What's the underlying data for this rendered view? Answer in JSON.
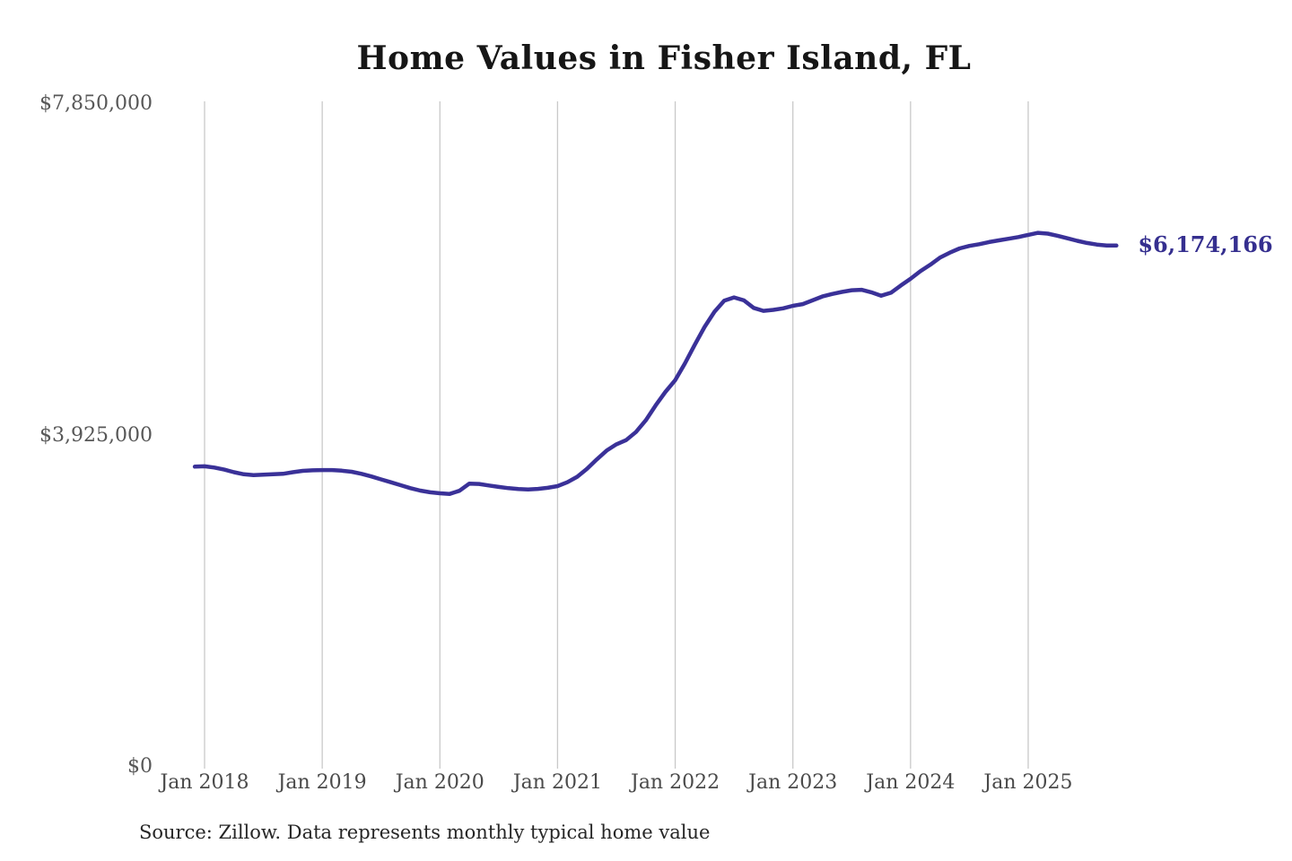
{
  "chart": {
    "title": "Home Values in Fisher Island, FL",
    "end_label": "$6,174,166",
    "source_note": "Source: Zillow. Data represents monthly typical home value",
    "line_color": "#3a3198",
    "end_label_color": "#352f8f",
    "grid_color": "#c9c9c9",
    "tick_color": "#4a4a4a"
  },
  "chart_data": {
    "type": "line",
    "title": "Home Values in Fisher Island, FL",
    "ylabel": "",
    "xlabel": "",
    "ylim": [
      0,
      7850000
    ],
    "grid": "vertical-only",
    "legend": "none",
    "x_ticks": [
      "Jan 2018",
      "Jan 2019",
      "Jan 2020",
      "Jan 2021",
      "Jan 2022",
      "Jan 2023",
      "Jan 2024",
      "Jan 2025"
    ],
    "y_ticks": [
      {
        "value": 7850000,
        "label": "$7,850,000"
      },
      {
        "value": 3925000,
        "label": "$3,925,000"
      },
      {
        "value": 0,
        "label": "$0"
      }
    ],
    "final_value": 6174166,
    "series": [
      {
        "name": "Monthly typical home value",
        "start_month": "2017-12",
        "end_month": "2025-10",
        "start_offset_months": -1,
        "values": [
          3555000,
          3560000,
          3545000,
          3520000,
          3490000,
          3465000,
          3455000,
          3460000,
          3465000,
          3470000,
          3490000,
          3505000,
          3512000,
          3515000,
          3515000,
          3508000,
          3495000,
          3470000,
          3440000,
          3405000,
          3370000,
          3335000,
          3300000,
          3272000,
          3252000,
          3240000,
          3232000,
          3270000,
          3355000,
          3350000,
          3332000,
          3315000,
          3300000,
          3290000,
          3285000,
          3292000,
          3305000,
          3325000,
          3370000,
          3435000,
          3530000,
          3640000,
          3745000,
          3820000,
          3870000,
          3965000,
          4105000,
          4280000,
          4440000,
          4580000,
          4780000,
          5000000,
          5210000,
          5390000,
          5520000,
          5560000,
          5525000,
          5435000,
          5400000,
          5412000,
          5430000,
          5460000,
          5480000,
          5525000,
          5570000,
          5600000,
          5625000,
          5645000,
          5650000,
          5620000,
          5580000,
          5615000,
          5700000,
          5780000,
          5870000,
          5945000,
          6030000,
          6090000,
          6140000,
          6170000,
          6190000,
          6215000,
          6235000,
          6255000,
          6275000,
          6300000,
          6325000,
          6315000,
          6290000,
          6260000,
          6230000,
          6205000,
          6185000,
          6175000,
          6174166
        ]
      }
    ]
  }
}
